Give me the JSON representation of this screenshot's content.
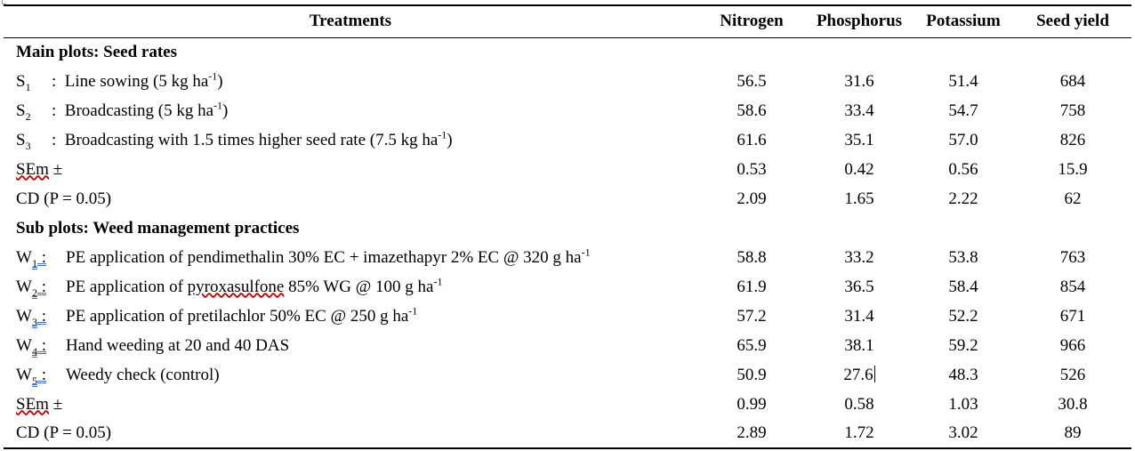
{
  "table": {
    "headers": [
      "Treatments",
      "Nitrogen",
      "Phosphorus",
      "Potassium",
      "Seed yield"
    ],
    "main_plots": {
      "title": "Main plots: Seed rates",
      "rows": [
        {
          "code": "S",
          "sub": "1",
          "sep": ":",
          "text": "Line sowing (5 kg ha",
          "sup": "-1",
          "tail": ")",
          "values": [
            "56.5",
            "31.6",
            "51.4",
            "684"
          ]
        },
        {
          "code": "S",
          "sub": "2",
          "sep": ":",
          "text": "Broadcasting (5 kg ha",
          "sup": "-1",
          "tail": ")",
          "values": [
            "58.6",
            "33.4",
            "54.7",
            "758"
          ]
        },
        {
          "code": "S",
          "sub": "3",
          "sep": ":",
          "text": "Broadcasting with 1.5 times higher seed rate (7.5 kg ha",
          "sup": "-1",
          "tail": ")",
          "values": [
            "61.6",
            "35.1",
            "57.0",
            "826"
          ]
        }
      ],
      "sem": {
        "label": "SEm",
        "symbol": " ±",
        "values": [
          "0.53",
          "0.42",
          "0.56",
          "15.9"
        ]
      },
      "cd": {
        "label": "CD (P = 0.05)",
        "values": [
          "2.09",
          "1.65",
          "2.22",
          "62"
        ]
      }
    },
    "sub_plots": {
      "title": "Sub plots: Weed management practices",
      "rows": [
        {
          "code": "W",
          "sub": "1",
          "sep": ":",
          "pre": "PE application of pendimethalin 30% EC + imazethapyr 2% EC @ 320 g ha",
          "sup": "-1",
          "values": [
            "58.8",
            "33.2",
            "53.8",
            "763"
          ]
        },
        {
          "code": "W",
          "sub": "2",
          "sep": ":",
          "pre": "PE application of ",
          "chem": "pyroxasulfone",
          "post": " 85% WG @ 100 g ha",
          "sup": "-1",
          "values": [
            "61.9",
            "36.5",
            "58.4",
            "854"
          ]
        },
        {
          "code": "W",
          "sub": "3",
          "sep": ":",
          "pre": "PE application of pretilachlor 50% EC @ 250 g ha",
          "sup": "-1",
          "values": [
            "57.2",
            "31.4",
            "52.2",
            "671"
          ]
        },
        {
          "code": "W",
          "sub": "4",
          "sep": ":",
          "pre": "Hand weeding at 20 and 40 DAS",
          "values": [
            "65.9",
            "38.1",
            "59.2",
            "966"
          ]
        },
        {
          "code": "W",
          "sub": "5",
          "sep": ":",
          "pre": "Weedy check (control)",
          "values": [
            "50.9",
            "27.6",
            "48.3",
            "526"
          ]
        }
      ],
      "sem": {
        "label": "SEm",
        "symbol": " ±",
        "values": [
          "0.99",
          "0.58",
          "1.03",
          "30.8"
        ]
      },
      "cd": {
        "label": "CD (P = 0.05)",
        "values": [
          "2.89",
          "1.72",
          "3.02",
          "89"
        ]
      }
    }
  }
}
